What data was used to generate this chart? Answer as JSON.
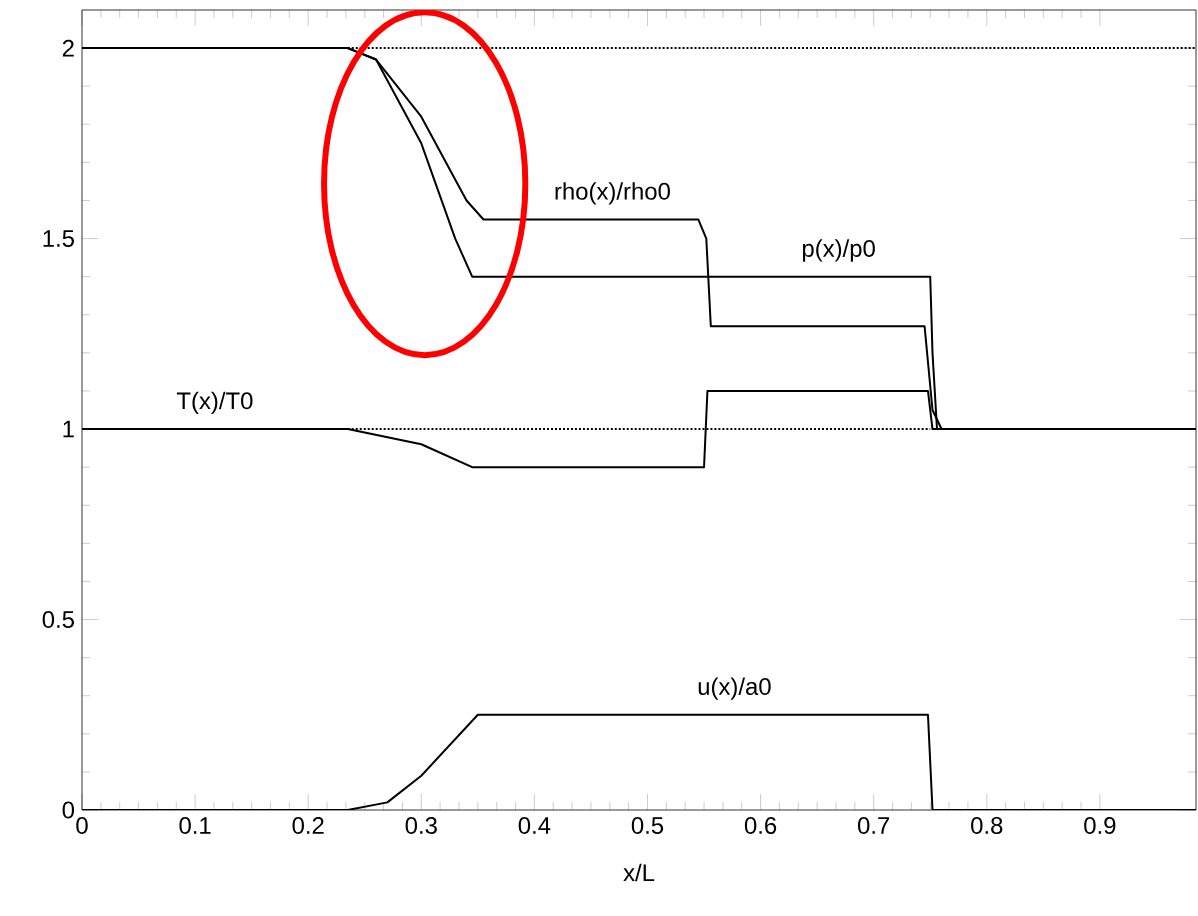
{
  "chart_data": {
    "type": "line",
    "xlabel": "x/L",
    "xlim": [
      0,
      0.985
    ],
    "xticks": [
      0,
      0.1,
      0.2,
      0.3,
      0.4,
      0.5,
      0.6,
      0.7,
      0.8,
      0.9
    ],
    "ylim": [
      0,
      2.1
    ],
    "yticks": [
      0,
      0.5,
      1,
      1.5,
      2
    ],
    "grid": false,
    "marker": "none",
    "series": [
      {
        "name": "rho(x)/rho0",
        "color": "#000000",
        "line_style": "solid",
        "x": [
          0,
          0.235,
          0.26,
          0.3,
          0.34,
          0.355,
          0.545,
          0.552,
          0.556,
          0.745,
          0.752,
          0.76,
          0.985
        ],
        "values": [
          2,
          2,
          1.97,
          1.82,
          1.6,
          1.55,
          1.55,
          1.5,
          1.27,
          1.27,
          1.05,
          1,
          1
        ]
      },
      {
        "name": "p(x)/p0",
        "color": "#000000",
        "line_style": "solid",
        "x": [
          0,
          0.235,
          0.26,
          0.3,
          0.33,
          0.345,
          0.75,
          0.752,
          0.756,
          0.985
        ],
        "values": [
          2,
          2,
          1.97,
          1.75,
          1.5,
          1.4,
          1.4,
          1.2,
          1,
          1
        ]
      },
      {
        "name": "T(x)/T0",
        "color": "#000000",
        "line_style": "solid",
        "x": [
          0,
          0.235,
          0.3,
          0.345,
          0.55,
          0.553,
          0.748,
          0.752,
          0.985
        ],
        "values": [
          1,
          1,
          0.96,
          0.9,
          0.9,
          1.1,
          1.1,
          1,
          1
        ]
      },
      {
        "name": "u(x)/a0",
        "color": "#000000",
        "line_style": "solid",
        "x": [
          0,
          0.235,
          0.27,
          0.3,
          0.35,
          0.748,
          0.752,
          0.985
        ],
        "values": [
          0,
          0,
          0.02,
          0.09,
          0.25,
          0.25,
          0,
          0
        ]
      },
      {
        "color": "#000000",
        "line_style": "dotted",
        "x": [
          0.235,
          0.985
        ],
        "values": [
          2,
          2
        ]
      },
      {
        "color": "#000000",
        "line_style": "dotted",
        "x": [
          0.235,
          0.75
        ],
        "values": [
          1,
          1
        ]
      }
    ]
  }
}
